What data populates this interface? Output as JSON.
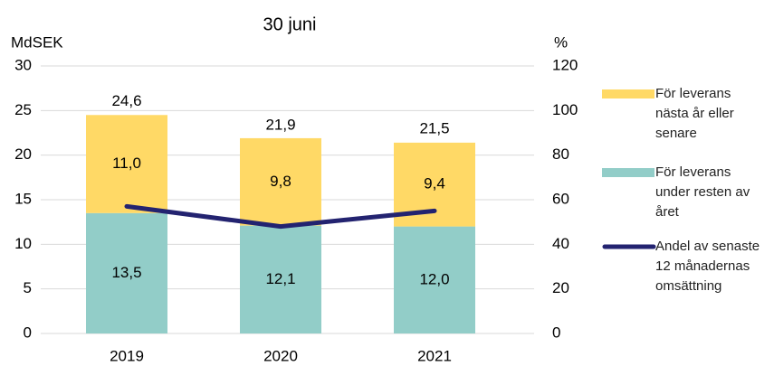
{
  "chart_data": {
    "type": "bar",
    "stacked": true,
    "title": "30 juni",
    "ylabel": "MdSEK",
    "y2label": "%",
    "categories": [
      "2019",
      "2020",
      "2021"
    ],
    "series": [
      {
        "name": "För leverans under resten av året",
        "color": "#92cdc8",
        "values": [
          13.5,
          12.1,
          12.0
        ],
        "value_labels": [
          "13,5",
          "12,1",
          "12,0"
        ]
      },
      {
        "name": "För leverans nästa år eller senare",
        "color": "#ffd966",
        "values": [
          11.0,
          9.8,
          9.4
        ],
        "value_labels": [
          "11,0",
          "9,8",
          "9,4"
        ]
      },
      {
        "name": "Andel av senaste 12 månadernas omsättning",
        "type": "line",
        "axis": "y2",
        "color": "#232370",
        "values": [
          57,
          48,
          55
        ]
      }
    ],
    "totals": [
      24.6,
      21.9,
      21.5
    ],
    "total_labels": [
      "24,6",
      "21,9",
      "21,5"
    ],
    "ylim": [
      0,
      30
    ],
    "yticks": [
      0,
      5,
      10,
      15,
      20,
      25,
      30
    ],
    "y2lim": [
      0,
      120
    ],
    "y2ticks": [
      0,
      20,
      40,
      60,
      80,
      100,
      120
    ],
    "grid": true,
    "legend": "right"
  }
}
